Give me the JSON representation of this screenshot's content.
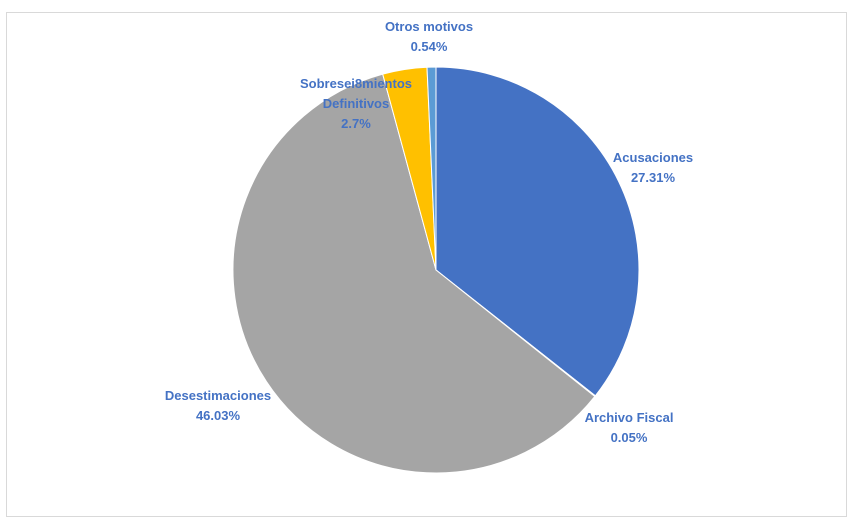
{
  "chart_data": {
    "type": "pie",
    "title": "",
    "slices": [
      {
        "label_lines": [
          "Acusaciones"
        ],
        "value_text": "27.31%",
        "value": 27.31,
        "color": "#4472c4"
      },
      {
        "label_lines": [
          "Archivo Fiscal"
        ],
        "value_text": "0.05%",
        "value": 0.05,
        "color": "#ed7d31"
      },
      {
        "label_lines": [
          "Desestimaciones"
        ],
        "value_text": "46.03%",
        "value": 46.03,
        "color": "#a5a5a5"
      },
      {
        "label_lines": [
          "Sobresei8mientos",
          "Definitivos"
        ],
        "value_text": "2.7%",
        "value": 2.7,
        "color": "#ffc000"
      },
      {
        "label_lines": [
          "Otros motivos"
        ],
        "value_text": "0.54%",
        "value": 0.54,
        "color": "#5b9bd5"
      }
    ],
    "label_color": "#4472c4",
    "legend": "none"
  }
}
